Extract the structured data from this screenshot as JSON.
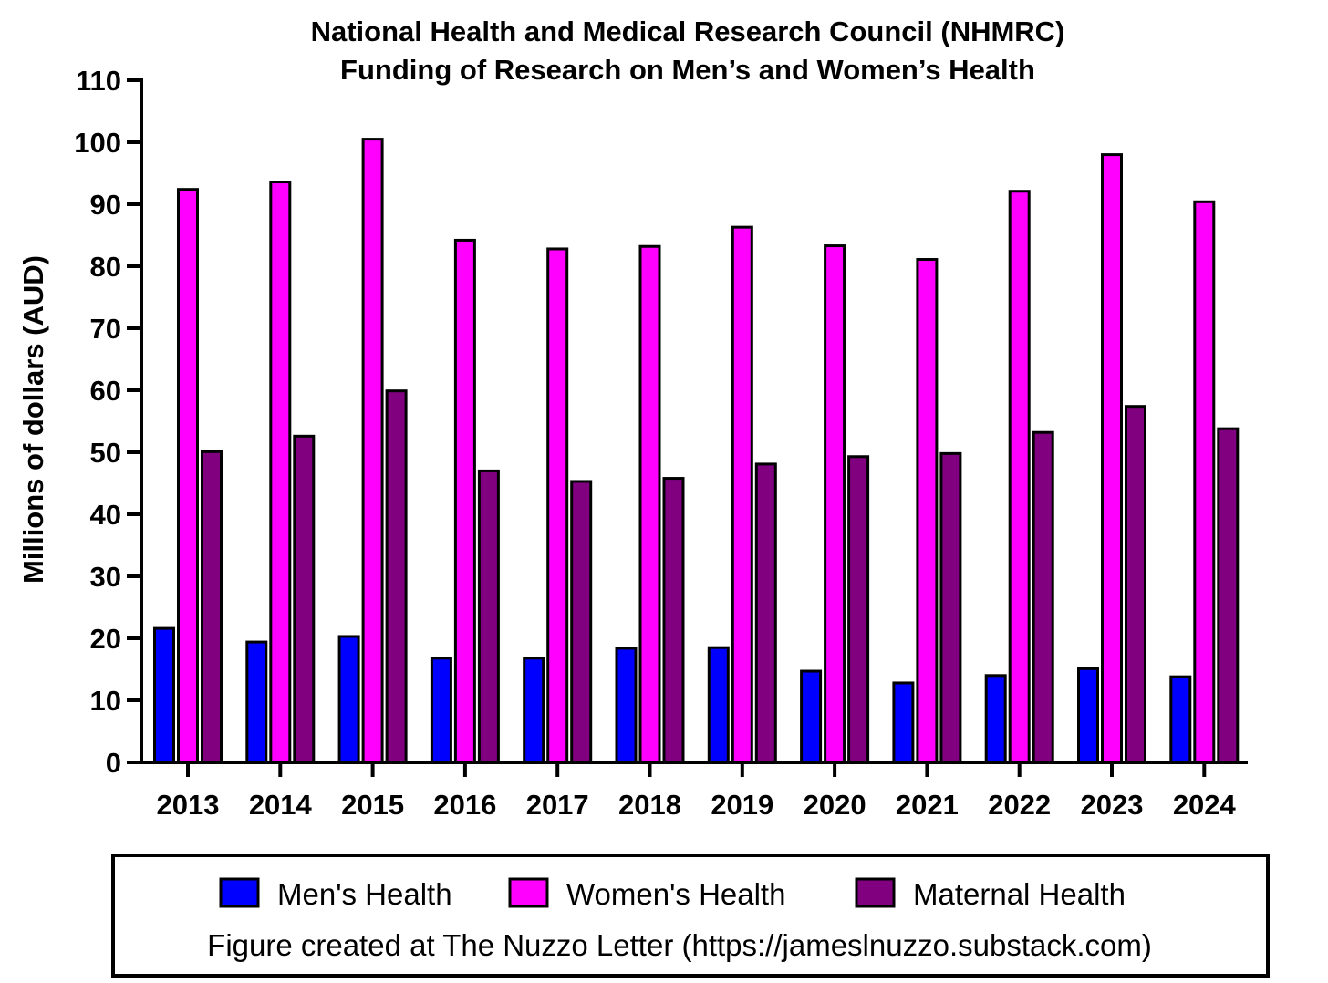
{
  "chart_data": {
    "type": "bar",
    "title": "National Health and Medical Research Council (NHMRC)",
    "subtitle": "Funding of Research on Men’s and Women’s Health",
    "xlabel": "",
    "ylabel": "Millions of dollars (AUD)",
    "ylim": [
      0,
      110
    ],
    "yticks": [
      "0",
      "10",
      "20",
      "30",
      "40",
      "50",
      "60",
      "70",
      "80",
      "90",
      "100",
      "110"
    ],
    "grid": false,
    "legend_position": "bottom",
    "categories": [
      "2013",
      "2014",
      "2015",
      "2016",
      "2017",
      "2018",
      "2019",
      "2020",
      "2021",
      "2022",
      "2023",
      "2024"
    ],
    "series": [
      {
        "name": "Men's Health",
        "color": "#0000FF",
        "values": [
          21.6,
          19.4,
          20.3,
          16.8,
          16.8,
          18.4,
          18.5,
          14.7,
          12.8,
          14.0,
          15.1,
          13.8
        ]
      },
      {
        "name": "Women's Health",
        "color": "#FF00FF",
        "values": [
          92.4,
          93.6,
          100.5,
          84.2,
          82.8,
          83.2,
          86.3,
          83.3,
          81.1,
          92.1,
          98.0,
          90.4
        ]
      },
      {
        "name": "Maternal Health",
        "color": "#800080",
        "values": [
          50.1,
          52.6,
          59.9,
          47.0,
          45.3,
          45.8,
          48.1,
          49.3,
          49.8,
          53.2,
          57.4,
          53.8
        ]
      }
    ],
    "footer": "Figure created at The Nuzzo Letter (https://jameslnuzzo.substack.com)"
  }
}
